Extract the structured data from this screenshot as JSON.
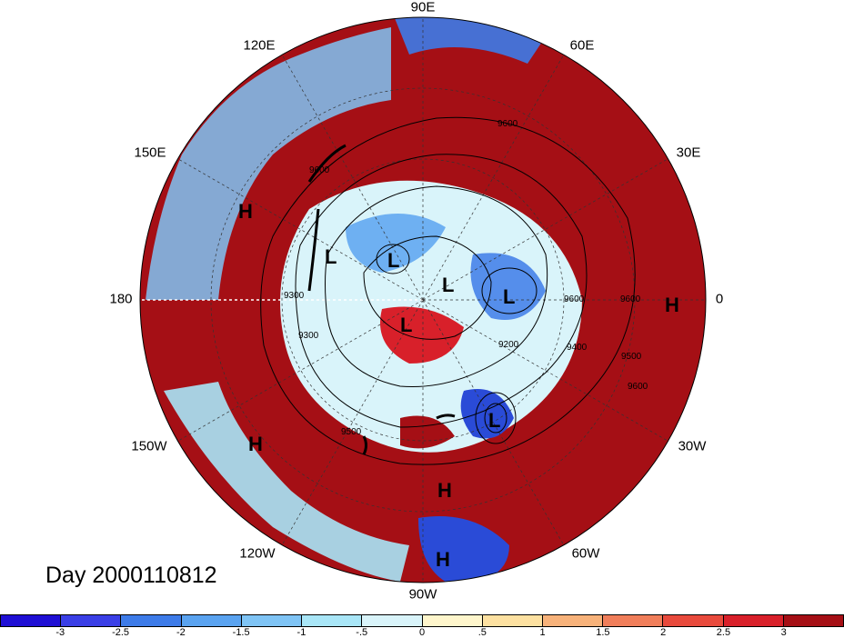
{
  "map": {
    "longitude_labels": {
      "lon_90E": "90E",
      "lon_60E": "60E",
      "lon_30E": "30E",
      "lon_0": "0",
      "lon_30W": "30W",
      "lon_60W": "60W",
      "lon_90W": "90W",
      "lon_120W": "120W",
      "lon_150W": "150W",
      "lon_180": "180",
      "lon_150E": "150E",
      "lon_120E": "120E"
    },
    "pressure_centers": [
      {
        "label": "H",
        "name": "high-pressure-label"
      },
      {
        "label": "H",
        "name": "high-pressure-label"
      },
      {
        "label": "H",
        "name": "high-pressure-label"
      },
      {
        "label": "H",
        "name": "high-pressure-label"
      },
      {
        "label": "H",
        "name": "high-pressure-label"
      },
      {
        "label": "L",
        "name": "low-pressure-label"
      },
      {
        "label": "L",
        "name": "low-pressure-label"
      },
      {
        "label": "L",
        "name": "low-pressure-label"
      },
      {
        "label": "L",
        "name": "low-pressure-label"
      },
      {
        "label": "L",
        "name": "low-pressure-label"
      },
      {
        "label": "L",
        "name": "low-pressure-label"
      }
    ],
    "contour_labels": [
      "9600",
      "9600",
      "9300",
      "9300",
      "9500",
      "9200",
      "9400",
      "9500",
      "9600",
      "9600",
      "9600"
    ],
    "colors": {
      "deep_red": "#a50f15",
      "red": "#e3342f",
      "blue": "#2a4bd7",
      "background": "#ffffff"
    }
  },
  "day_label": "Day 2000110812",
  "colorbar": {
    "colors": [
      "#1f0fd4",
      "#3a3fe6",
      "#3d7be8",
      "#5aa3f0",
      "#7fc4f5",
      "#a9e6f7",
      "#d9f4fa",
      "#fff6cc",
      "#fde1a1",
      "#f7b27a",
      "#f07e5a",
      "#e84a3c",
      "#d8202a",
      "#a50f15"
    ],
    "ticks": [
      "-3",
      "-2.5",
      "-2",
      "-1.5",
      "-1",
      "-.5",
      "0",
      ".5",
      "1",
      "1.5",
      "2",
      "2.5",
      "3"
    ]
  }
}
